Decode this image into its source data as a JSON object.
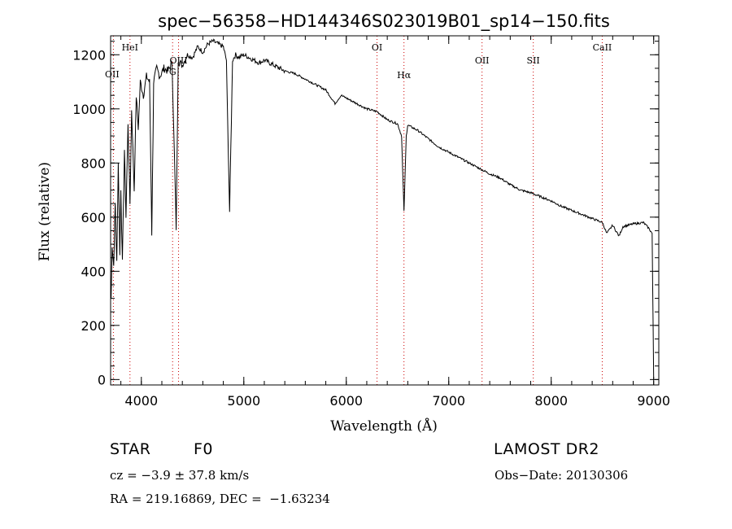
{
  "chart_data": {
    "type": "line",
    "title": "spec−56358−HD144346S023019B01_sp14−150.fits",
    "xlabel": "Wavelength (Å)",
    "ylabel": "Flux (relative)",
    "xlim": [
      3700,
      9050
    ],
    "ylim": [
      -20,
      1270
    ],
    "xticks": [
      4000,
      5000,
      6000,
      7000,
      8000,
      9000
    ],
    "xtick_labels": [
      "4000",
      "5000",
      "6000",
      "7000",
      "8000",
      "9000"
    ],
    "yticks": [
      0,
      200,
      400,
      600,
      800,
      1000,
      1200
    ],
    "ytick_labels": [
      "0",
      "200",
      "400",
      "600",
      "800",
      "1000",
      "1200"
    ],
    "grid": false,
    "line_color": "#000000",
    "marker_color": "#cc0000",
    "series": [
      {
        "x": [
          3705,
          3715,
          3730,
          3745,
          3760,
          3775,
          3790,
          3800,
          3815,
          3835,
          3850,
          3870,
          3889,
          3905,
          3930,
          3950,
          3970,
          3990,
          4020,
          4050,
          4080,
          4102,
          4120,
          4150,
          4180,
          4220,
          4260,
          4300,
          4340,
          4360,
          4400,
          4450,
          4500,
          4550,
          4600,
          4650,
          4700,
          4750,
          4800,
          4830,
          4861,
          4890,
          4920,
          4950,
          5000,
          5050,
          5100,
          5150,
          5200,
          5300,
          5400,
          5500,
          5600,
          5700,
          5800,
          5890,
          5950,
          6000,
          6100,
          6200,
          6300,
          6400,
          6500,
          6540,
          6563,
          6585,
          6600,
          6700,
          6800,
          6900,
          7000,
          7100,
          7200,
          7300,
          7400,
          7500,
          7600,
          7700,
          7800,
          7900,
          8000,
          8100,
          8200,
          8300,
          8400,
          8500,
          8542,
          8600,
          8662,
          8700,
          8800,
          8900,
          8950,
          8985,
          9000
        ],
        "y": [
          300,
          500,
          420,
          650,
          430,
          800,
          470,
          700,
          430,
          850,
          600,
          950,
          650,
          1000,
          700,
          1050,
          930,
          1100,
          1050,
          1120,
          1100,
          540,
          1100,
          1150,
          1120,
          1150,
          1140,
          1170,
          560,
          1180,
          1160,
          1200,
          1190,
          1230,
          1210,
          1240,
          1250,
          1240,
          1230,
          1180,
          620,
          1180,
          1200,
          1190,
          1200,
          1190,
          1180,
          1170,
          1180,
          1160,
          1140,
          1130,
          1110,
          1090,
          1070,
          1020,
          1050,
          1040,
          1020,
          1000,
          990,
          960,
          945,
          900,
          620,
          900,
          940,
          920,
          890,
          860,
          840,
          820,
          800,
          780,
          760,
          745,
          720,
          700,
          690,
          675,
          660,
          640,
          625,
          610,
          595,
          580,
          540,
          570,
          530,
          565,
          575,
          580,
          560,
          540,
          0
        ]
      }
    ],
    "lines": [
      {
        "label": "HeI",
        "x": 3889
      },
      {
        "label": "OII",
        "x": 3727
      },
      {
        "label": "OIII",
        "x": 4363
      },
      {
        "label": "G",
        "x": 4305
      },
      {
        "label": "OI",
        "x": 6300
      },
      {
        "label": "Hα",
        "x": 6563
      },
      {
        "label": "OII",
        "x": 7325
      },
      {
        "label": "SII",
        "x": 7825
      },
      {
        "label": "CaII",
        "x": 8498
      }
    ]
  },
  "info": {
    "class_label": "STAR",
    "subclass": "F0",
    "survey": "LAMOST DR2",
    "redshift": "cz = −3.9 ± 37.8 km/s",
    "obsdate": "Obs−Date: 20130306",
    "coords": "RA = 219.16869, DEC =  −1.63234"
  }
}
